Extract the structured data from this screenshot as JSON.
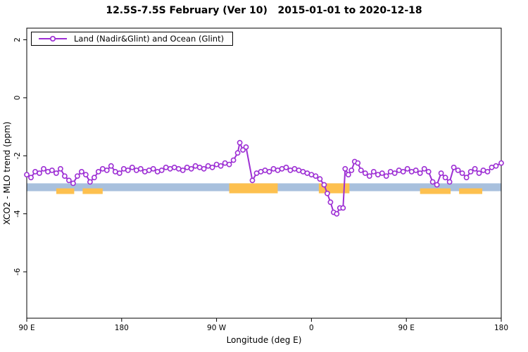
{
  "chart_data": {
    "type": "line",
    "title": "12.5S-7.5S February (Ver 10)   2015-01-01 to 2020-12-18",
    "xlabel": "Longitude (deg E)",
    "ylabel": "XCO2 - MLO trend (ppm)",
    "legend": [
      "Land (Nadir&Glint) and Ocean (Glint)"
    ],
    "line_color": "#9d2fd4",
    "marker_fill": "#ffffff",
    "grid": "off",
    "legend_position": "top-left",
    "xlim": [
      0,
      450
    ],
    "ylim": [
      -7.6,
      2.4
    ],
    "xticks": {
      "positions": [
        0,
        90,
        180,
        270,
        360,
        450
      ],
      "labels": [
        "90 E",
        "180",
        "90 W",
        "0",
        "90 E",
        "180"
      ]
    },
    "yticks": {
      "positions": [
        2,
        0,
        -2,
        -4,
        -6
      ],
      "labels": [
        "2",
        "0",
        "-2",
        "-4",
        "-6"
      ]
    },
    "band": {
      "description": "land-ocean indicator strip",
      "y_top": -2.95,
      "y_bottom": -3.22,
      "ocean_color": "#a8c0dd",
      "land_color": "#fdc04f",
      "land_segments": [
        {
          "from": 28,
          "to": 45,
          "style": "partial"
        },
        {
          "from": 53,
          "to": 72,
          "style": "partial"
        },
        {
          "from": 192,
          "to": 238,
          "style": "full"
        },
        {
          "from": 277,
          "to": 306,
          "style": "full"
        },
        {
          "from": 373,
          "to": 402,
          "style": "partial"
        },
        {
          "from": 410,
          "to": 432,
          "style": "partial"
        }
      ]
    },
    "series": [
      {
        "name": "Land (Nadir&Glint) and Ocean (Glint)",
        "points": [
          [
            0,
            -2.65
          ],
          [
            4,
            -2.75
          ],
          [
            8,
            -2.55
          ],
          [
            12,
            -2.6
          ],
          [
            16,
            -2.45
          ],
          [
            20,
            -2.55
          ],
          [
            24,
            -2.5
          ],
          [
            28,
            -2.6
          ],
          [
            32,
            -2.45
          ],
          [
            36,
            -2.7
          ],
          [
            40,
            -2.85
          ],
          [
            44,
            -2.95
          ],
          [
            48,
            -2.7
          ],
          [
            52,
            -2.55
          ],
          [
            56,
            -2.65
          ],
          [
            60,
            -2.9
          ],
          [
            64,
            -2.75
          ],
          [
            68,
            -2.55
          ],
          [
            72,
            -2.45
          ],
          [
            76,
            -2.5
          ],
          [
            80,
            -2.35
          ],
          [
            84,
            -2.55
          ],
          [
            88,
            -2.6
          ],
          [
            92,
            -2.45
          ],
          [
            96,
            -2.5
          ],
          [
            100,
            -2.4
          ],
          [
            104,
            -2.5
          ],
          [
            108,
            -2.45
          ],
          [
            112,
            -2.55
          ],
          [
            116,
            -2.5
          ],
          [
            120,
            -2.45
          ],
          [
            124,
            -2.55
          ],
          [
            128,
            -2.5
          ],
          [
            132,
            -2.4
          ],
          [
            136,
            -2.45
          ],
          [
            140,
            -2.4
          ],
          [
            144,
            -2.45
          ],
          [
            148,
            -2.5
          ],
          [
            152,
            -2.4
          ],
          [
            156,
            -2.45
          ],
          [
            160,
            -2.35
          ],
          [
            164,
            -2.4
          ],
          [
            168,
            -2.45
          ],
          [
            172,
            -2.35
          ],
          [
            176,
            -2.4
          ],
          [
            180,
            -2.3
          ],
          [
            184,
            -2.35
          ],
          [
            188,
            -2.25
          ],
          [
            192,
            -2.3
          ],
          [
            196,
            -2.15
          ],
          [
            200,
            -1.9
          ],
          [
            202,
            -1.55
          ],
          [
            205,
            -1.8
          ],
          [
            208,
            -1.7
          ],
          [
            214,
            -2.85
          ],
          [
            218,
            -2.6
          ],
          [
            222,
            -2.55
          ],
          [
            226,
            -2.5
          ],
          [
            230,
            -2.55
          ],
          [
            234,
            -2.45
          ],
          [
            238,
            -2.5
          ],
          [
            242,
            -2.45
          ],
          [
            246,
            -2.4
          ],
          [
            250,
            -2.5
          ],
          [
            254,
            -2.45
          ],
          [
            258,
            -2.5
          ],
          [
            262,
            -2.55
          ],
          [
            266,
            -2.6
          ],
          [
            270,
            -2.65
          ],
          [
            274,
            -2.7
          ],
          [
            278,
            -2.8
          ],
          [
            282,
            -3.0
          ],
          [
            285,
            -3.3
          ],
          [
            288,
            -3.6
          ],
          [
            291,
            -3.95
          ],
          [
            294,
            -4.0
          ],
          [
            297,
            -3.8
          ],
          [
            300,
            -3.8
          ],
          [
            302,
            -2.45
          ],
          [
            305,
            -2.65
          ],
          [
            308,
            -2.5
          ],
          [
            311,
            -2.2
          ],
          [
            314,
            -2.25
          ],
          [
            317,
            -2.5
          ],
          [
            321,
            -2.6
          ],
          [
            325,
            -2.7
          ],
          [
            329,
            -2.55
          ],
          [
            333,
            -2.65
          ],
          [
            337,
            -2.6
          ],
          [
            341,
            -2.7
          ],
          [
            345,
            -2.55
          ],
          [
            349,
            -2.6
          ],
          [
            353,
            -2.5
          ],
          [
            357,
            -2.55
          ],
          [
            361,
            -2.45
          ],
          [
            365,
            -2.55
          ],
          [
            369,
            -2.5
          ],
          [
            373,
            -2.6
          ],
          [
            377,
            -2.45
          ],
          [
            381,
            -2.55
          ],
          [
            385,
            -2.9
          ],
          [
            389,
            -3.0
          ],
          [
            393,
            -2.6
          ],
          [
            397,
            -2.75
          ],
          [
            401,
            -2.9
          ],
          [
            405,
            -2.4
          ],
          [
            409,
            -2.5
          ],
          [
            413,
            -2.6
          ],
          [
            417,
            -2.75
          ],
          [
            421,
            -2.55
          ],
          [
            425,
            -2.45
          ],
          [
            429,
            -2.6
          ],
          [
            433,
            -2.5
          ],
          [
            437,
            -2.55
          ],
          [
            441,
            -2.4
          ],
          [
            445,
            -2.35
          ],
          [
            450,
            -2.25
          ]
        ]
      }
    ]
  }
}
